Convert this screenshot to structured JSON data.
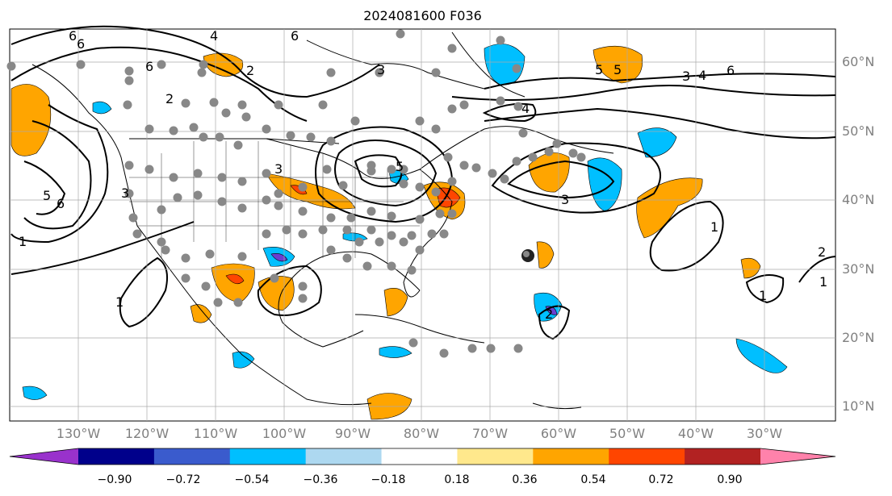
{
  "title": "2024081600 F036",
  "lat_labels": [
    "60°N",
    "50°N",
    "40°N",
    "30°N",
    "20°N",
    "10°N"
  ],
  "lon_labels": [
    "130°W",
    "120°W",
    "110°W",
    "100°W",
    "90°W",
    "80°W",
    "70°W",
    "60°W",
    "50°W",
    "40°W",
    "30°W"
  ],
  "colorbar": {
    "ticks": [
      "−0.90",
      "−0.72",
      "−0.54",
      "−0.36",
      "−0.18",
      "0.18",
      "0.36",
      "0.54",
      "0.72",
      "0.90"
    ],
    "colors": [
      "#9932cc",
      "#00008b",
      "#3a5bcd",
      "#00bfff",
      "#add8f0",
      "#ffffff",
      "#ffe88c",
      "#ffa500",
      "#ff4500",
      "#b22222",
      "#ff82ab"
    ]
  },
  "contour_labels": [
    "6",
    "2",
    "3",
    "4",
    "6",
    "6",
    "3",
    "2",
    "5",
    "3",
    "4",
    "6",
    "5",
    "4",
    "5",
    "6",
    "3",
    "1",
    "1",
    "1",
    "1",
    "2",
    "5",
    "6",
    "3",
    "1",
    "2"
  ],
  "fill_colors": {
    "orange": "#ffa500",
    "red": "#ff4500",
    "cyan": "#00bfff",
    "purple": "#6a3fd0"
  }
}
